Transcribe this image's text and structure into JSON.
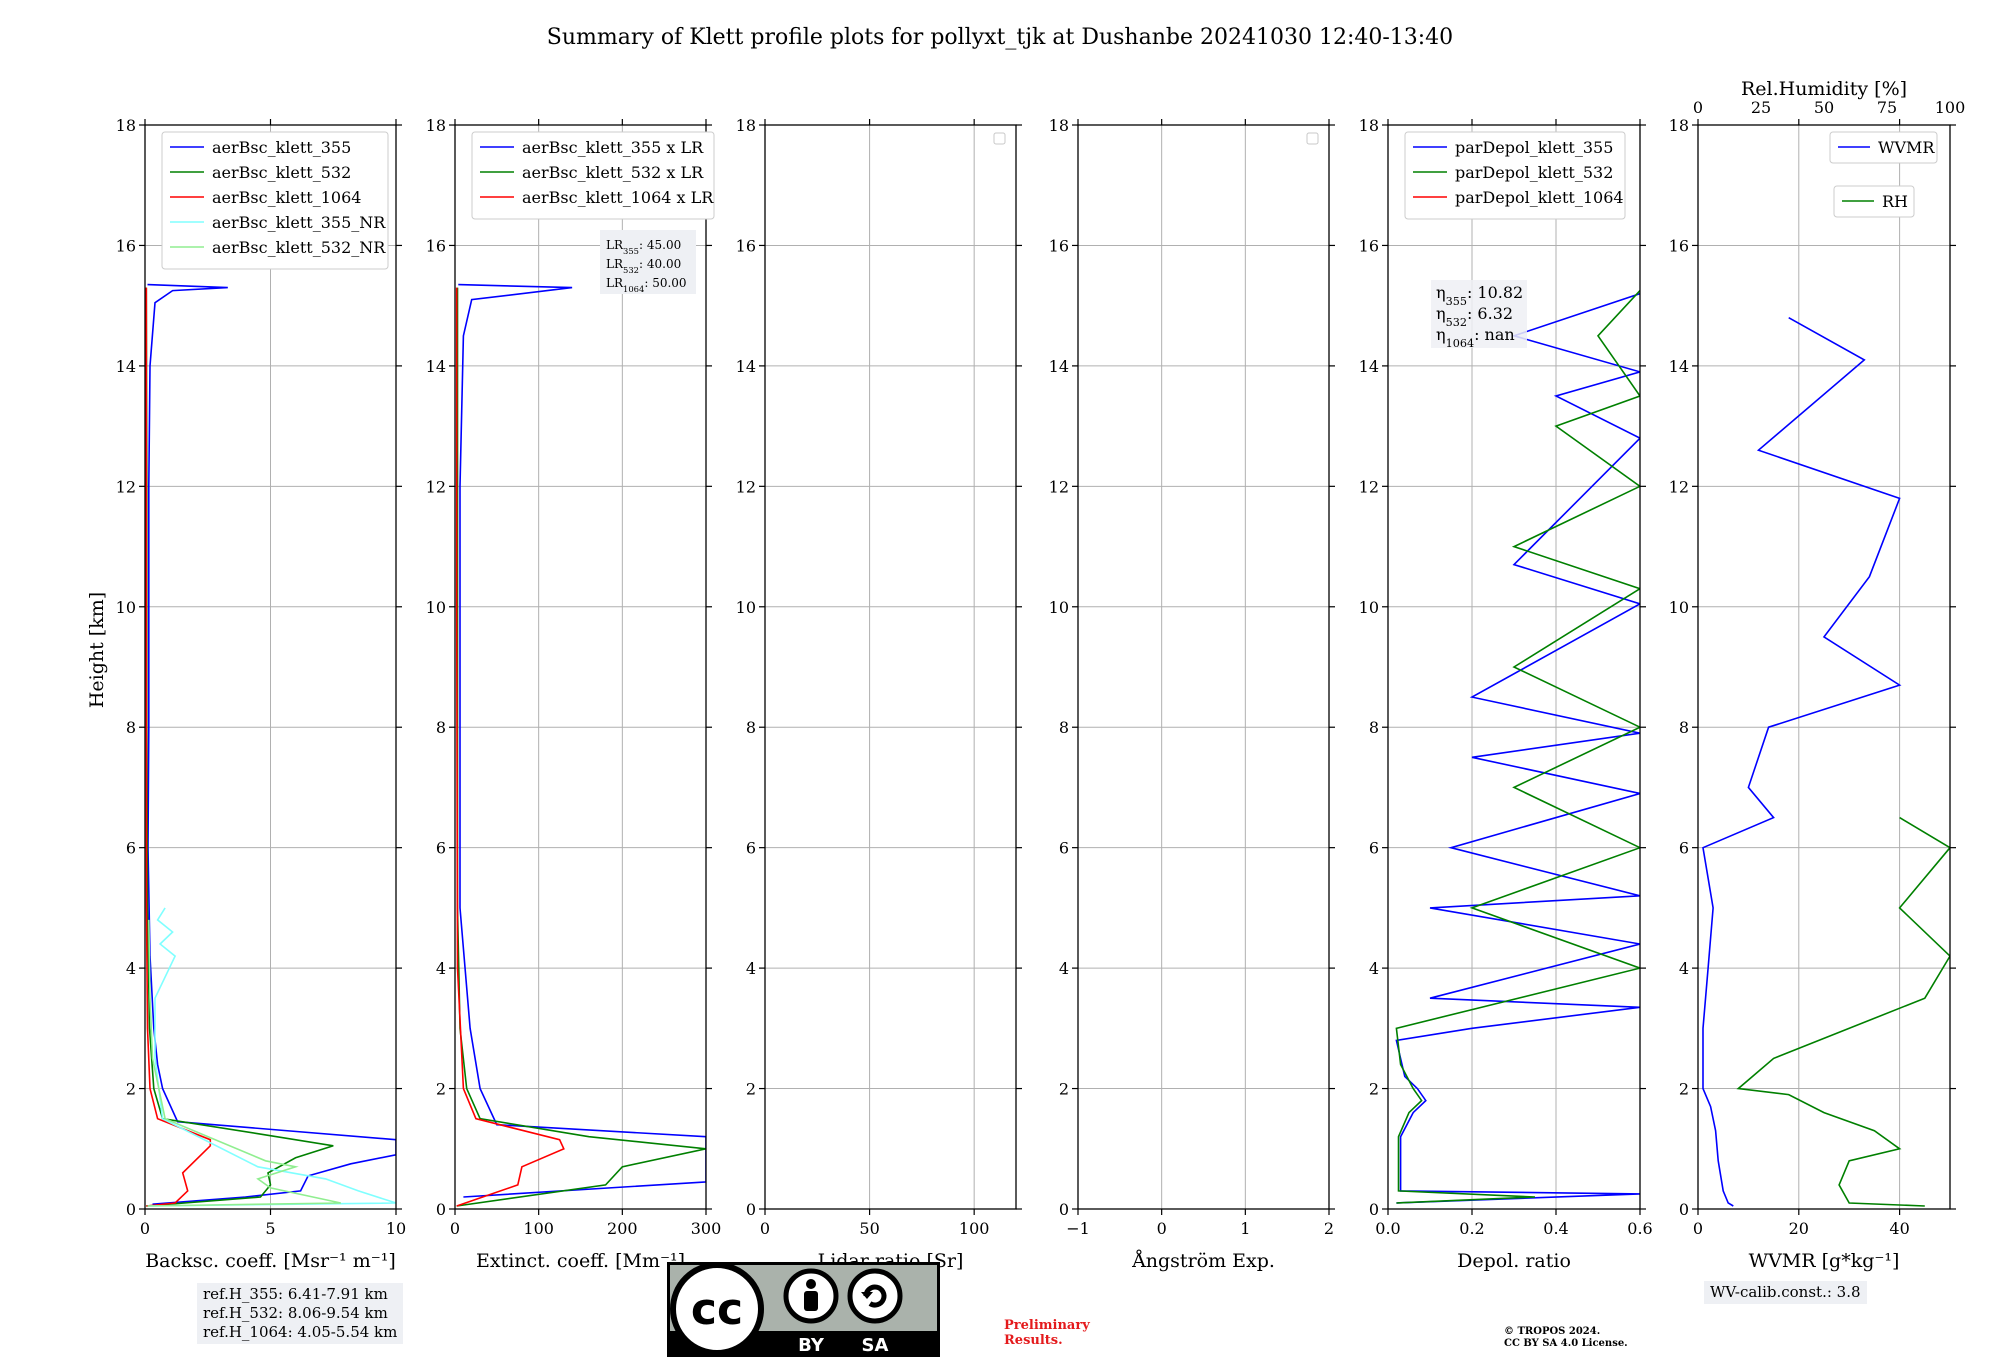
{
  "figure": {
    "title": "Summary of Klett profile plots for pollyxt_tjk at Dushanbe 20241030 12:40-13:40",
    "ylabel": "Height [km]",
    "yticks": [
      "0",
      "2",
      "4",
      "6",
      "8",
      "10",
      "12",
      "14",
      "16",
      "18"
    ]
  },
  "colors": {
    "blue": "#0000ff",
    "green": "#008000",
    "red": "#ff0000",
    "cyan": "#80ffff",
    "lightgreen": "#90ee90"
  },
  "chart_data": [
    {
      "type": "line",
      "xlabel": "Backsc. coeff. [Msr⁻¹ m⁻¹]",
      "xlim": [
        0,
        10
      ],
      "xticks": [
        "0",
        "5",
        "10"
      ],
      "ylim": [
        0,
        18
      ],
      "legend": [
        "aerBsc_klett_355",
        "aerBsc_klett_532",
        "aerBsc_klett_1064",
        "aerBsc_klett_355_NR",
        "aerBsc_klett_532_NR"
      ],
      "series": [
        {
          "name": "aerBsc_klett_355",
          "color": "blue",
          "points": [
            [
              0.3,
              0.08
            ],
            [
              4,
              0.2
            ],
            [
              6.2,
              0.3
            ],
            [
              6.5,
              0.55
            ],
            [
              8.2,
              0.75
            ],
            [
              10,
              0.9
            ],
            [
              10,
              1.15
            ],
            [
              1.3,
              1.45
            ],
            [
              0.7,
              2.0
            ],
            [
              0.5,
              2.4
            ],
            [
              0.35,
              3.0
            ],
            [
              0.2,
              4.2
            ],
            [
              0.12,
              6.0
            ],
            [
              0.15,
              8.0
            ],
            [
              0.15,
              10.0
            ],
            [
              0.15,
              12.0
            ],
            [
              0.2,
              14.0
            ],
            [
              0.4,
              15.05
            ],
            [
              1.1,
              15.25
            ],
            [
              3.3,
              15.3
            ],
            [
              0.1,
              15.35
            ]
          ]
        },
        {
          "name": "aerBsc_klett_532",
          "color": "green",
          "points": [
            [
              0.05,
              0.05
            ],
            [
              4.6,
              0.2
            ],
            [
              5.0,
              0.4
            ],
            [
              4.9,
              0.6
            ],
            [
              6.0,
              0.85
            ],
            [
              7.5,
              1.05
            ],
            [
              4.5,
              1.25
            ],
            [
              0.7,
              1.5
            ],
            [
              0.35,
              2.0
            ],
            [
              0.18,
              3.0
            ],
            [
              0.1,
              5.0
            ],
            [
              0.07,
              8.0
            ],
            [
              0.07,
              12.0
            ],
            [
              0.05,
              15.3
            ]
          ]
        },
        {
          "name": "aerBsc_klett_1064",
          "color": "red",
          "points": [
            [
              0.05,
              0.05
            ],
            [
              1.2,
              0.1
            ],
            [
              1.7,
              0.3
            ],
            [
              1.5,
              0.6
            ],
            [
              2.6,
              1.05
            ],
            [
              2.6,
              1.15
            ],
            [
              0.5,
              1.5
            ],
            [
              0.2,
              2.0
            ],
            [
              0.1,
              3.0
            ],
            [
              0.06,
              5.0
            ],
            [
              0.05,
              10.0
            ],
            [
              0.05,
              15.3
            ]
          ]
        },
        {
          "name": "aerBsc_klett_355_NR",
          "color": "cyan",
          "points": [
            [
              0.1,
              0.05
            ],
            [
              10,
              0.1
            ],
            [
              8.5,
              0.3
            ],
            [
              7.2,
              0.5
            ],
            [
              4.5,
              0.7
            ],
            [
              0.7,
              1.5
            ],
            [
              0.4,
              2.5
            ],
            [
              0.4,
              3.5
            ],
            [
              1.2,
              4.2
            ],
            [
              0.6,
              4.4
            ],
            [
              1.1,
              4.6
            ],
            [
              0.5,
              4.8
            ],
            [
              0.8,
              5.0
            ]
          ]
        },
        {
          "name": "aerBsc_klett_532_NR",
          "color": "lightgreen",
          "points": [
            [
              0.1,
              0.05
            ],
            [
              7.8,
              0.1
            ],
            [
              5.0,
              0.35
            ],
            [
              4.5,
              0.5
            ],
            [
              6.0,
              0.7
            ],
            [
              4.8,
              0.8
            ],
            [
              0.8,
              1.5
            ],
            [
              0.3,
              2.5
            ],
            [
              0.2,
              3.5
            ],
            [
              0.15,
              4.8
            ]
          ]
        }
      ]
    },
    {
      "type": "line",
      "xlabel": "Extinct. coeff. [Mm⁻¹]",
      "xlim": [
        0,
        300
      ],
      "xticks": [
        "0",
        "100",
        "200",
        "300"
      ],
      "ylim": [
        0,
        18
      ],
      "legend": [
        "aerBsc_klett_355 x LR",
        "aerBsc_klett_532 x LR",
        "aerBsc_klett_1064 x LR"
      ],
      "annotation": [
        "LR355: 45.00",
        "LR532: 40.00",
        "LR1064: 50.00"
      ],
      "series": [
        {
          "name": "aerBsc_klett_355 x LR",
          "color": "blue",
          "points": [
            [
              10,
              0.2
            ],
            [
              300,
              0.45
            ],
            [
              300,
              1.2
            ],
            [
              50,
              1.4
            ],
            [
              30,
              2.0
            ],
            [
              18,
              3.0
            ],
            [
              6,
              5.0
            ],
            [
              6,
              8.0
            ],
            [
              6,
              12.0
            ],
            [
              10,
              14.5
            ],
            [
              20,
              15.1
            ],
            [
              140,
              15.3
            ],
            [
              4,
              15.35
            ]
          ]
        },
        {
          "name": "aerBsc_klett_532 x LR",
          "color": "green",
          "points": [
            [
              2,
              0.05
            ],
            [
              180,
              0.4
            ],
            [
              200,
              0.7
            ],
            [
              300,
              1.0
            ],
            [
              160,
              1.2
            ],
            [
              30,
              1.5
            ],
            [
              14,
              2.0
            ],
            [
              6,
              3.0
            ],
            [
              3,
              5.0
            ],
            [
              3,
              10.0
            ],
            [
              3,
              15.3
            ]
          ]
        },
        {
          "name": "aerBsc_klett_1064 x LR",
          "color": "red",
          "points": [
            [
              2,
              0.05
            ],
            [
              75,
              0.4
            ],
            [
              80,
              0.7
            ],
            [
              130,
              1.0
            ],
            [
              125,
              1.15
            ],
            [
              25,
              1.5
            ],
            [
              10,
              2.0
            ],
            [
              3,
              4.0
            ],
            [
              2,
              10.0
            ],
            [
              2,
              15.3
            ]
          ]
        }
      ]
    },
    {
      "type": "line",
      "xlabel": "Lidar ratio [Sr]",
      "xlim": [
        0,
        120
      ],
      "xticks": [
        "0",
        "50",
        "100"
      ],
      "ylim": [
        0,
        18
      ],
      "legend": [],
      "series": []
    },
    {
      "type": "line",
      "xlabel": "Ångström Exp.",
      "xlim": [
        -1,
        2
      ],
      "xticks": [
        "−1",
        "0",
        "1",
        "2"
      ],
      "ylim": [
        0,
        18
      ],
      "legend": [],
      "series": []
    },
    {
      "type": "line",
      "xlabel": "Depol. ratio",
      "xlim": [
        0,
        0.6
      ],
      "xticks": [
        "0.0",
        "0.2",
        "0.4",
        "0.6"
      ],
      "ylim": [
        0,
        18
      ],
      "legend": [
        "parDepol_klett_355",
        "parDepol_klett_532",
        "parDepol_klett_1064"
      ],
      "annotation": [
        "η355: 10.82",
        "η532: 6.32",
        "η1064: nan"
      ],
      "series": [
        {
          "name": "parDepol_klett_355",
          "color": "blue",
          "points": [
            [
              0.02,
              0.1
            ],
            [
              0.6,
              0.25
            ],
            [
              0.03,
              0.3
            ],
            [
              0.03,
              1.2
            ],
            [
              0.06,
              1.6
            ],
            [
              0.09,
              1.8
            ],
            [
              0.07,
              2.0
            ],
            [
              0.04,
              2.2
            ],
            [
              0.02,
              2.8
            ],
            [
              0.2,
              3.0
            ],
            [
              0.6,
              3.35
            ],
            [
              0.1,
              3.5
            ],
            [
              0.6,
              4.4
            ],
            [
              0.1,
              5.0
            ],
            [
              0.6,
              5.2
            ],
            [
              0.15,
              6.0
            ],
            [
              0.6,
              6.9
            ],
            [
              0.2,
              7.5
            ],
            [
              0.6,
              7.9
            ],
            [
              0.2,
              8.5
            ],
            [
              0.6,
              10.05
            ],
            [
              0.3,
              10.7
            ],
            [
              0.6,
              12.8
            ],
            [
              0.4,
              13.5
            ],
            [
              0.6,
              13.9
            ],
            [
              0.3,
              14.5
            ],
            [
              0.6,
              15.2
            ]
          ]
        },
        {
          "name": "parDepol_klett_532",
          "color": "green",
          "points": [
            [
              0.02,
              0.1
            ],
            [
              0.35,
              0.2
            ],
            [
              0.025,
              0.3
            ],
            [
              0.025,
              1.2
            ],
            [
              0.05,
              1.6
            ],
            [
              0.08,
              1.8
            ],
            [
              0.06,
              2.0
            ],
            [
              0.03,
              2.4
            ],
            [
              0.02,
              3.0
            ],
            [
              0.6,
              4.0
            ],
            [
              0.2,
              5.0
            ],
            [
              0.6,
              6.0
            ],
            [
              0.3,
              7.0
            ],
            [
              0.6,
              8.0
            ],
            [
              0.3,
              9.0
            ],
            [
              0.6,
              10.3
            ],
            [
              0.3,
              11.0
            ],
            [
              0.6,
              12.0
            ],
            [
              0.4,
              13.0
            ],
            [
              0.6,
              13.5
            ],
            [
              0.5,
              14.5
            ],
            [
              0.6,
              15.25
            ]
          ]
        },
        {
          "name": "parDepol_klett_1064",
          "color": "red",
          "points": []
        }
      ]
    },
    {
      "type": "line",
      "xlabel": "WVMR [g*kg⁻¹]",
      "xlim": [
        0,
        50
      ],
      "xticks": [
        "0",
        "20",
        "40"
      ],
      "ylim": [
        0,
        18
      ],
      "x2label": "Rel.Humidity [%]",
      "x2lim": [
        0,
        100
      ],
      "x2ticks": [
        "0",
        "25",
        "50",
        "75",
        "100"
      ],
      "legend": [
        "WVMR",
        "RH"
      ],
      "annotation": [
        "WV-calib.const.: 3.8"
      ],
      "series": [
        {
          "name": "WVMR",
          "color": "blue",
          "points": [
            [
              7,
              0.05
            ],
            [
              6,
              0.1
            ],
            [
              5,
              0.3
            ],
            [
              4,
              0.8
            ],
            [
              3.5,
              1.3
            ],
            [
              2.5,
              1.7
            ],
            [
              1,
              2.0
            ],
            [
              1,
              3.0
            ],
            [
              2,
              4.0
            ],
            [
              3,
              5.0
            ],
            [
              1,
              6.0
            ],
            [
              15,
              6.5
            ],
            [
              10,
              7.0
            ],
            [
              14,
              8.0
            ],
            [
              40,
              8.7
            ],
            [
              25,
              9.5
            ],
            [
              34,
              10.5
            ],
            [
              40,
              11.8
            ],
            [
              12,
              12.6
            ],
            [
              33,
              14.1
            ],
            [
              18,
              14.8
            ]
          ]
        },
        {
          "name": "RH",
          "color": "green",
          "points": [
            [
              45,
              0.05
            ],
            [
              30,
              0.1
            ],
            [
              28,
              0.4
            ],
            [
              30,
              0.8
            ],
            [
              40,
              1.0
            ],
            [
              35,
              1.3
            ],
            [
              25,
              1.6
            ],
            [
              18,
              1.9
            ],
            [
              8,
              2.0
            ],
            [
              15,
              2.5
            ],
            [
              45,
              3.5
            ],
            [
              50,
              4.2
            ],
            [
              40,
              5.0
            ],
            [
              50,
              6.0
            ],
            [
              40,
              6.5
            ]
          ]
        }
      ]
    }
  ],
  "annotations": {
    "ref_heights": [
      "ref.H_355: 6.41-7.91 km",
      "ref.H_532: 8.06-9.54 km",
      "ref.H_1064: 4.05-5.54 km"
    ],
    "wv_calib": "WV-calib.const.: 3.8",
    "preliminary": [
      "Preliminary",
      "Results."
    ],
    "copyright": [
      "© TROPOS 2024.",
      "CC BY SA 4.0 License."
    ],
    "license_badge": [
      "cc",
      "BY",
      "SA"
    ]
  }
}
